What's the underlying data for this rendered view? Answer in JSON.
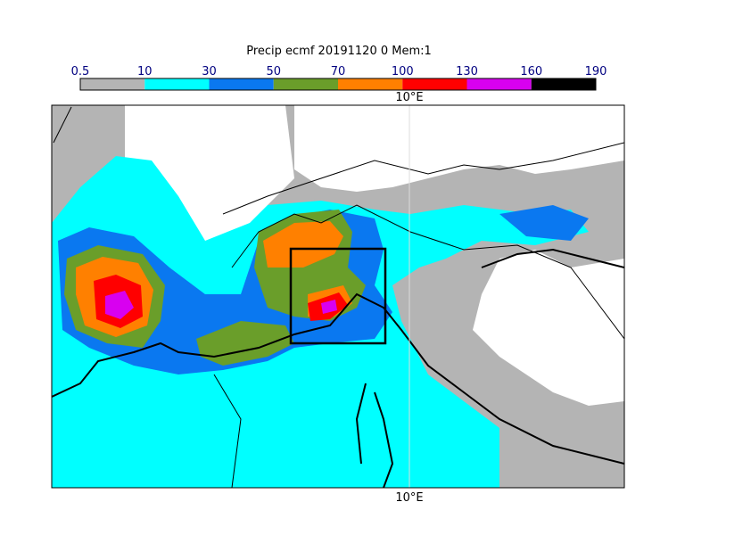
{
  "title": "Precip ecmf 20191120 0 Mem:1",
  "colorbar": {
    "levels": [
      0.5,
      10,
      30,
      50,
      70,
      100,
      130,
      160,
      190
    ],
    "colors": [
      "#b4b4b4",
      "#00ffff",
      "#0a78f0",
      "#6a9e2a",
      "#ff8000",
      "#ff0000",
      "#d800f0",
      "#000000"
    ]
  },
  "lon_label_top": "10°E",
  "lon_label_bottom": "10°E"
}
